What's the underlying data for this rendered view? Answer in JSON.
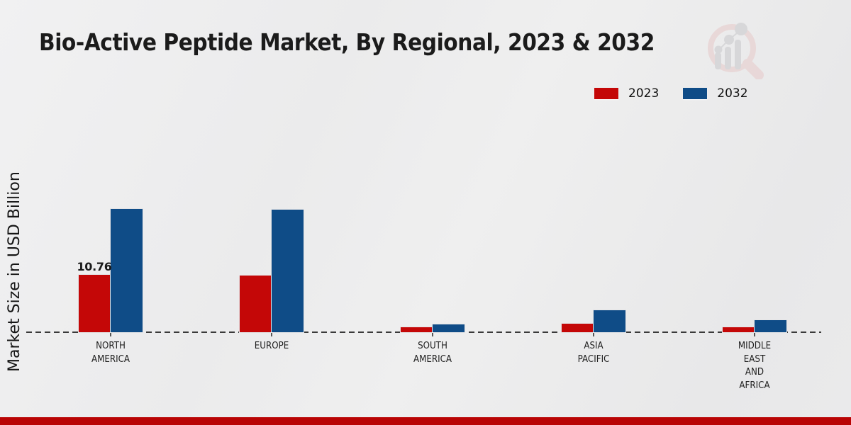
{
  "page": {
    "title": "Bio-Active Peptide Market, By Regional, 2023 & 2032"
  },
  "y_axis": {
    "label": "Market Size in USD Billion"
  },
  "legend": [
    {
      "label": "2023",
      "color": "#c40707"
    },
    {
      "label": "2032",
      "color": "#0f4c87"
    }
  ],
  "colors": {
    "series_2023": "#c40707",
    "series_2032": "#0f4c87",
    "bottom_stripe": "#b90404",
    "baseline": "#3a3a3a",
    "background": "#ececed",
    "watermark_pink": "#e7c9c9",
    "watermark_gray": "#c7c7cb"
  },
  "chart_data": {
    "type": "bar",
    "title": "Bio-Active Peptide Market, By Regional, 2023 & 2032",
    "xlabel": "",
    "ylabel": "Market Size in USD Billion",
    "categories": [
      "NORTH AMERICA",
      "EUROPE",
      "SOUTH AMERICA",
      "ASIA PACIFIC",
      "MIDDLE EAST AND AFRICA"
    ],
    "category_lines": [
      [
        "NORTH",
        "AMERICA"
      ],
      [
        "EUROPE"
      ],
      [
        "SOUTH",
        "AMERICA"
      ],
      [
        "ASIA",
        "PACIFIC"
      ],
      [
        "MIDDLE",
        "EAST",
        "AND",
        "AFRICA"
      ]
    ],
    "series": [
      {
        "name": "2023",
        "color": "#c40707",
        "values": [
          10.76,
          10.6,
          0.95,
          1.65,
          0.95
        ]
      },
      {
        "name": "2032",
        "color": "#0f4c87",
        "values": [
          23.0,
          22.8,
          1.5,
          4.1,
          2.2
        ]
      }
    ],
    "data_labels": [
      {
        "series": "2023",
        "category_index": 0,
        "text": "10.76"
      }
    ],
    "ylim": [
      0,
      25
    ],
    "grid": false,
    "baseline_style": "dashed",
    "legend_position": "top-right"
  },
  "watermark": {
    "name": "market-research-future-logo"
  }
}
